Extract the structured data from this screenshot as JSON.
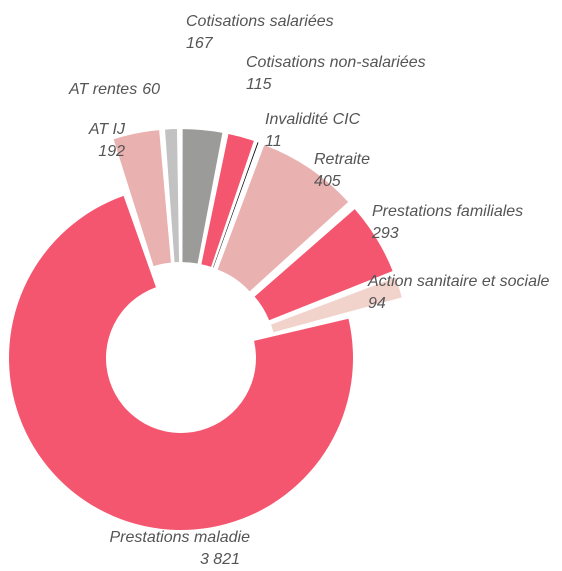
{
  "chart_data": {
    "type": "donut",
    "categories": [
      "AT IJ",
      "AT rentes",
      "Cotisations salariées",
      "Cotisations non-salariées",
      "Invalidité CIC",
      "Retraite",
      "Prestations familiales",
      "Action sanitaire et sociale",
      "Prestations maladie"
    ],
    "values": [
      192,
      60,
      167,
      115,
      11,
      405,
      293,
      94,
      3821
    ],
    "value_labels": [
      "192",
      "60",
      "167",
      "115",
      "11",
      "405",
      "293",
      "94",
      "3 821"
    ],
    "colors": [
      "#e9b1b0",
      "#c2c2c2",
      "#9b9b99",
      "#f5566f",
      "#000000",
      "#e9b1b0",
      "#f5566f",
      "#f2d3cc",
      "#f5566f"
    ]
  }
}
